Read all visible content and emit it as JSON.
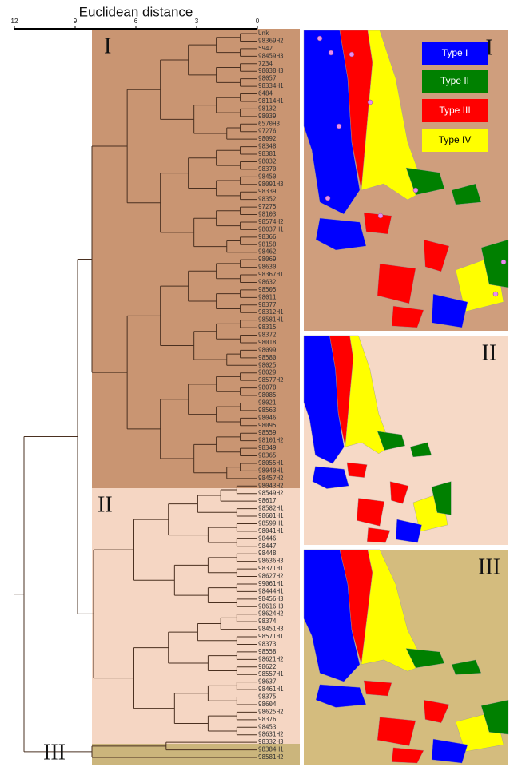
{
  "axis": {
    "title": "Euclidean distance",
    "ticks": [
      12,
      9,
      6,
      3,
      0
    ]
  },
  "clusters": [
    {
      "label": "I",
      "leaves": [
        "Unk",
        "98369H2",
        "5942",
        "98459H3",
        "7234",
        "98038H3",
        "98057",
        "98334H1",
        "6484",
        "98114H1",
        "98132",
        "98039",
        "6570H3",
        "97276",
        "98092",
        "98348",
        "98381",
        "98032",
        "98370",
        "98450",
        "98091H3",
        "98339",
        "98352",
        "97275",
        "98103",
        "98574H2",
        "98037H1",
        "98366",
        "98158",
        "98462",
        "98069",
        "98630",
        "98367H1",
        "98632",
        "98505",
        "98011",
        "98377",
        "98312H1",
        "98581H1",
        "98315",
        "98372",
        "98018",
        "98099",
        "98580",
        "98025",
        "98029",
        "98577H2",
        "98078",
        "98085",
        "98021",
        "98563",
        "98046",
        "98095",
        "98559",
        "98101H2",
        "98349",
        "98365",
        "98055H1",
        "98040H1",
        "98457H2"
      ]
    },
    {
      "label": "II",
      "leaves": [
        "98043H2",
        "98549H2",
        "98617",
        "98582H1",
        "98601H1",
        "98599H1",
        "98041H1",
        "98446",
        "98447",
        "98448",
        "98636H3",
        "98371H1",
        "98627H2",
        "99061H1",
        "98444H1",
        "98456H3",
        "98616H3",
        "98624H2",
        "98374",
        "98451H3",
        "98571H1",
        "98373",
        "98558",
        "98621H2",
        "98622",
        "98557H1",
        "98637",
        "98461H1",
        "98375",
        "98604",
        "98625H2",
        "98376",
        "98453",
        "98631H2"
      ]
    },
    {
      "label": "III",
      "leaves": [
        "98332H3",
        "98384H1",
        "98581H2"
      ]
    }
  ],
  "legend": [
    {
      "label": "Type I",
      "color": "#0000ff"
    },
    {
      "label": "Type II",
      "color": "#008000"
    },
    {
      "label": "Type III",
      "color": "#ff0000"
    },
    {
      "label": "Type IV",
      "color": "#ffff00"
    }
  ],
  "maps": [
    {
      "label": "I"
    },
    {
      "label": "II"
    },
    {
      "label": "III"
    }
  ]
}
